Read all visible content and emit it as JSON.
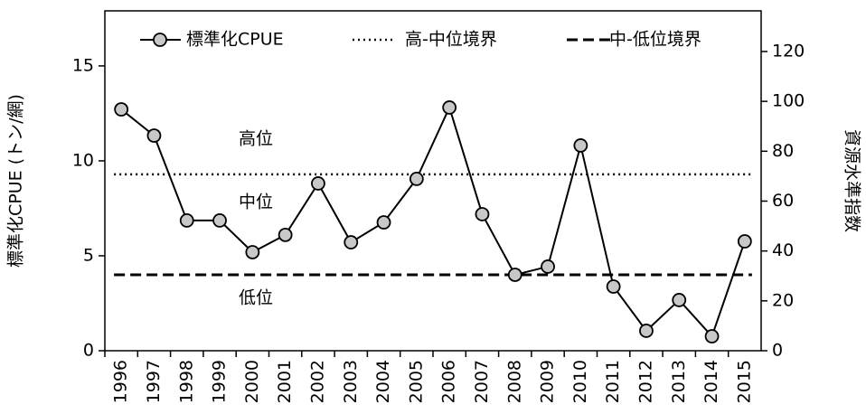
{
  "chart_data": {
    "type": "line",
    "categories": [
      "1996",
      "1997",
      "1998",
      "1999",
      "2000",
      "2001",
      "2002",
      "2003",
      "2004",
      "2005",
      "2006",
      "2007",
      "2008",
      "2009",
      "2010",
      "2011",
      "2012",
      "2013",
      "2014",
      "2015"
    ],
    "series": [
      {
        "name": "標準化CPUE",
        "color": "#000000",
        "marker_fill": "#c8c8c8",
        "values": [
          12.71,
          11.33,
          6.86,
          6.86,
          5.19,
          6.1,
          8.81,
          5.71,
          6.76,
          9.05,
          12.81,
          7.19,
          4.0,
          4.43,
          10.81,
          3.38,
          1.05,
          2.67,
          0.76,
          5.76
        ]
      }
    ],
    "reference_lines": [
      {
        "name": "高-中位境界",
        "value": 9.29,
        "style": "dotted"
      },
      {
        "name": "中-低位境界",
        "value": 4.0,
        "style": "dashed"
      }
    ],
    "annotations": [
      "高位",
      "中位",
      "低位"
    ],
    "ylabel": "標準化CPUE (トン/網)",
    "y2label": "資源水準指数",
    "ylim": [
      0,
      17.9
    ],
    "yticks": [
      0,
      5,
      10,
      15
    ],
    "y2lim": [
      0,
      136.3
    ],
    "y2ticks": [
      0,
      20,
      40,
      60,
      80,
      100,
      120
    ],
    "grid": false,
    "legend": "top"
  }
}
